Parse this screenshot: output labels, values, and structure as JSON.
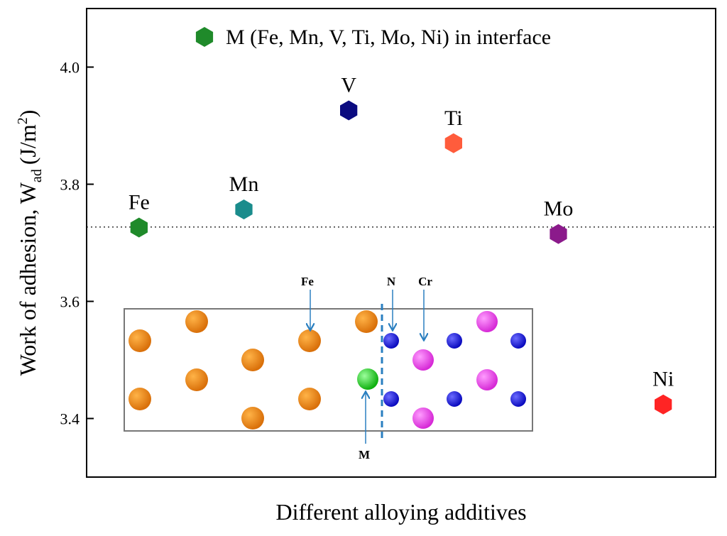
{
  "chart_data": {
    "type": "scatter",
    "categories": [
      "Fe",
      "Mn",
      "V",
      "Ti",
      "Mo",
      "Ni"
    ],
    "values": [
      3.726,
      3.757,
      3.926,
      3.87,
      3.715,
      3.424
    ],
    "colors": [
      "#1f8a2a",
      "#1a8c8c",
      "#0b0b80",
      "#ff5c3c",
      "#8b1a8b",
      "#ff2424"
    ],
    "ylim": [
      3.3,
      4.1
    ],
    "yticks": [
      3.4,
      3.6,
      3.8,
      {
        "value": 4.0,
        "label": "4.0"
      }
    ],
    "reference_line": 3.727,
    "xlabel": "Different alloying additives",
    "ylabel": {
      "main": "Work of adhesion, W",
      "sub": "ad",
      "unit": "(J/m",
      "sup": "2",
      "close": ")"
    },
    "legend": {
      "label": "M (Fe, Mn, V, Ti, Mo, Ni) in interface",
      "color": "#1f8a2a"
    },
    "inset": {
      "labels": [
        "Fe",
        "N",
        "Cr",
        "M"
      ]
    }
  }
}
